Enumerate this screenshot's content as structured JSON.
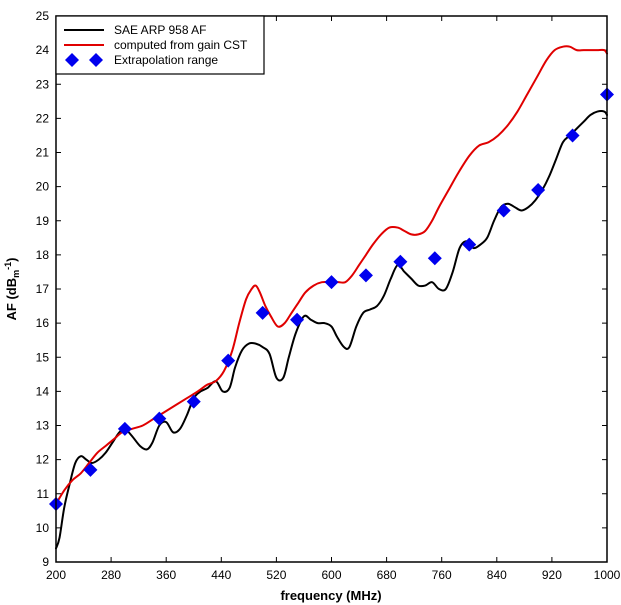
{
  "chart_data": {
    "type": "line",
    "title": "",
    "xlabel": "frequency (MHz)",
    "ylabel_main": "AF (dB",
    "ylabel_sub": "m",
    "ylabel_sup": "-1",
    "ylabel_end": ")",
    "xlim": [
      200,
      1000
    ],
    "ylim": [
      9,
      25
    ],
    "x_ticks": [
      200,
      280,
      360,
      440,
      520,
      600,
      680,
      760,
      840,
      920,
      1000
    ],
    "y_ticks": [
      9,
      10,
      11,
      12,
      13,
      14,
      15,
      16,
      17,
      18,
      19,
      20,
      21,
      22,
      23,
      24,
      25
    ],
    "grid": false,
    "legend_position": "top-left",
    "series": [
      {
        "name": "SAE ARP 958 AF",
        "style": "line",
        "color": "#000000",
        "x": [
          200,
          205,
          212,
          220,
          228,
          236,
          244,
          252,
          262,
          272,
          282,
          292,
          300,
          310,
          322,
          332,
          340,
          350,
          360,
          370,
          380,
          390,
          400,
          410,
          420,
          432,
          442,
          452,
          460,
          470,
          480,
          490,
          500,
          510,
          520,
          530,
          538,
          548,
          560,
          570,
          580,
          590,
          600,
          608,
          618,
          626,
          636,
          646,
          656,
          666,
          676,
          686,
          696,
          706,
          716,
          726,
          736,
          746,
          756,
          766,
          776,
          786,
          796,
          806,
          816,
          826,
          836,
          846,
          856,
          866,
          876,
          886,
          896,
          906,
          916,
          926,
          936,
          946,
          956,
          966,
          976,
          986,
          996,
          1000
        ],
        "y": [
          9.4,
          9.7,
          10.6,
          11.3,
          11.9,
          12.1,
          12.0,
          11.9,
          12.0,
          12.2,
          12.5,
          12.8,
          12.9,
          12.7,
          12.4,
          12.3,
          12.5,
          13.0,
          13.1,
          12.8,
          12.9,
          13.3,
          13.8,
          14.0,
          14.1,
          14.3,
          14.0,
          14.1,
          14.7,
          15.2,
          15.4,
          15.4,
          15.3,
          15.1,
          14.4,
          14.4,
          15.0,
          15.7,
          16.2,
          16.1,
          16.0,
          16.0,
          15.9,
          15.6,
          15.3,
          15.3,
          15.9,
          16.3,
          16.4,
          16.5,
          16.8,
          17.3,
          17.7,
          17.5,
          17.3,
          17.1,
          17.1,
          17.2,
          17.0,
          17.0,
          17.5,
          18.2,
          18.4,
          18.2,
          18.3,
          18.5,
          19.0,
          19.4,
          19.5,
          19.4,
          19.3,
          19.4,
          19.6,
          19.9,
          20.3,
          20.8,
          21.3,
          21.5,
          21.7,
          21.9,
          22.1,
          22.2,
          22.2,
          22.1
        ]
      },
      {
        "name": "computed from gain CST",
        "style": "line",
        "color": "#e00000",
        "x": [
          200,
          212,
          224,
          236,
          248,
          260,
          272,
          284,
          296,
          310,
          326,
          342,
          358,
          374,
          390,
          406,
          420,
          432,
          444,
          456,
          466,
          476,
          484,
          490,
          496,
          504,
          512,
          522,
          532,
          542,
          552,
          562,
          574,
          586,
          598,
          610,
          620,
          630,
          640,
          650,
          660,
          672,
          684,
          696,
          706,
          716,
          726,
          736,
          746,
          756,
          770,
          784,
          800,
          814,
          828,
          842,
          856,
          870,
          884,
          898,
          912,
          924,
          936,
          946,
          956,
          966,
          976,
          986,
          996,
          1000
        ],
        "y": [
          10.7,
          11.1,
          11.4,
          11.6,
          11.9,
          12.2,
          12.4,
          12.6,
          12.8,
          12.9,
          13.0,
          13.2,
          13.4,
          13.6,
          13.8,
          14.0,
          14.2,
          14.3,
          14.6,
          15.2,
          16.0,
          16.7,
          17.0,
          17.1,
          16.9,
          16.5,
          16.2,
          15.9,
          16.0,
          16.3,
          16.6,
          16.9,
          17.1,
          17.2,
          17.2,
          17.2,
          17.2,
          17.4,
          17.7,
          18.0,
          18.3,
          18.6,
          18.8,
          18.8,
          18.7,
          18.6,
          18.6,
          18.7,
          19.0,
          19.4,
          19.9,
          20.4,
          20.9,
          21.2,
          21.3,
          21.5,
          21.8,
          22.2,
          22.7,
          23.2,
          23.7,
          24.0,
          24.1,
          24.1,
          24.0,
          24.0,
          24.0,
          24.0,
          24.0,
          23.9
        ]
      },
      {
        "name": "Extrapolation range",
        "style": "markers",
        "color": "#0000ee",
        "marker": "diamond",
        "x": [
          200,
          250,
          300,
          350,
          400,
          450,
          500,
          550,
          600,
          650,
          700,
          750,
          800,
          850,
          900,
          950,
          1000
        ],
        "y": [
          10.7,
          11.7,
          12.9,
          13.2,
          13.7,
          14.9,
          16.3,
          16.1,
          17.2,
          17.4,
          17.8,
          17.9,
          18.3,
          19.3,
          19.9,
          21.5,
          22.7
        ]
      }
    ]
  }
}
